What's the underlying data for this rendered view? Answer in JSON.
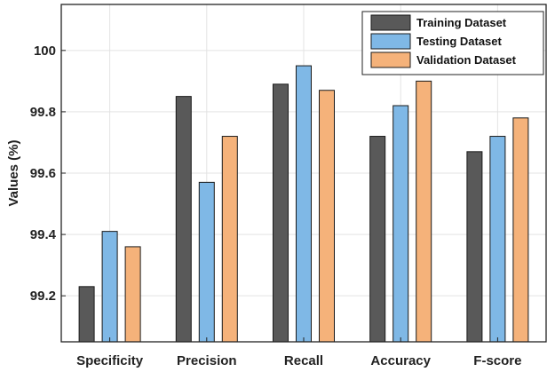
{
  "chart_data": {
    "type": "bar",
    "title": "",
    "xlabel": "",
    "ylabel": "Values (%)",
    "ylim": [
      99.05,
      100.15
    ],
    "yticks": [
      99.2,
      99.4,
      99.6,
      99.8,
      100
    ],
    "ytick_labels": [
      "99.2",
      "99.4",
      "99.6",
      "99.8",
      "100"
    ],
    "grid": true,
    "legend_position": "top-right",
    "categories": [
      "Specificity",
      "Precision",
      "Recall",
      "Accuracy",
      "F-score"
    ],
    "series": [
      {
        "name": "Training Dataset",
        "color": "#595959",
        "values": [
          99.23,
          99.85,
          99.89,
          99.72,
          99.67
        ]
      },
      {
        "name": "Testing Dataset",
        "color": "#7FB8E6",
        "values": [
          99.41,
          99.57,
          99.95,
          99.82,
          99.72
        ]
      },
      {
        "name": "Validation Dataset",
        "color": "#F5B27A",
        "values": [
          99.36,
          99.72,
          99.87,
          99.9,
          99.78
        ]
      }
    ]
  }
}
